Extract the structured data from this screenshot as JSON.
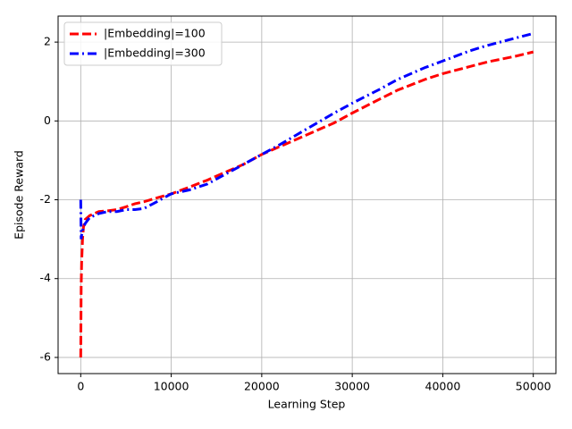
{
  "chart_data": {
    "type": "line",
    "xlabel": "Learning Step",
    "ylabel": "Episode Reward",
    "x": [
      0,
      50,
      100,
      200,
      300,
      500,
      1000,
      1500,
      2000,
      3000,
      4000,
      5000,
      6000,
      7000,
      8000,
      10000,
      12000,
      14000,
      16000,
      18000,
      20000,
      22000,
      25000,
      28000,
      30000,
      33000,
      35000,
      38000,
      40000,
      43000,
      45000,
      48000,
      50000
    ],
    "series": [
      {
        "name": "|Embedding|=100",
        "color": "#ff0000",
        "style": "dashed",
        "values": [
          -6.0,
          -4.2,
          -3.6,
          -3.0,
          -2.7,
          -2.5,
          -2.4,
          -2.35,
          -2.3,
          -2.28,
          -2.25,
          -2.18,
          -2.1,
          -2.05,
          -1.98,
          -1.85,
          -1.68,
          -1.5,
          -1.3,
          -1.1,
          -0.85,
          -0.65,
          -0.35,
          -0.05,
          0.2,
          0.55,
          0.78,
          1.05,
          1.2,
          1.38,
          1.5,
          1.64,
          1.75
        ]
      },
      {
        "name": "|Embedding|=300",
        "color": "#0000ff",
        "style": "dashdot",
        "values": [
          -2.0,
          -3.0,
          -2.9,
          -2.8,
          -2.7,
          -2.6,
          -2.45,
          -2.4,
          -2.35,
          -2.3,
          -2.3,
          -2.25,
          -2.25,
          -2.22,
          -2.1,
          -1.85,
          -1.75,
          -1.6,
          -1.35,
          -1.1,
          -0.85,
          -0.6,
          -0.2,
          0.2,
          0.45,
          0.8,
          1.05,
          1.35,
          1.52,
          1.78,
          1.92,
          2.1,
          2.22
        ]
      }
    ],
    "xlim": [
      -2500,
      52500
    ],
    "ylim": [
      -6.41,
      2.66
    ],
    "xticks": [
      0,
      10000,
      20000,
      30000,
      40000,
      50000
    ],
    "yticks": [
      -6,
      -4,
      -2,
      0,
      2
    ],
    "grid": true,
    "legend": "upper-left"
  }
}
